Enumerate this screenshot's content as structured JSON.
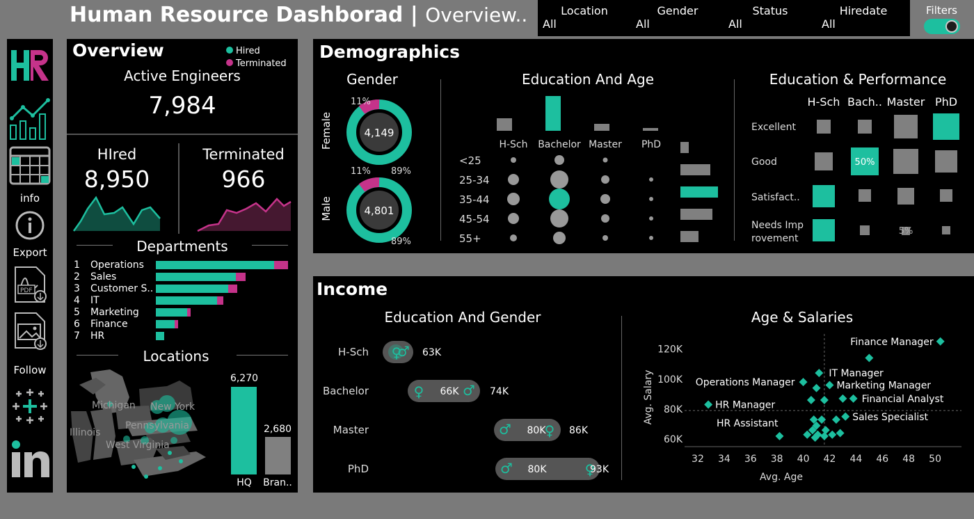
{
  "header": {
    "title": "Human Resource Dashborad",
    "separator": "|",
    "subtitle": "Overview..",
    "filters": [
      {
        "label": "Location",
        "value": "All"
      },
      {
        "label": "Gender",
        "value": "All"
      },
      {
        "label": "Status",
        "value": "All"
      },
      {
        "label": "Hiredate",
        "value": "All"
      }
    ],
    "filters_toggle_label": "Filters"
  },
  "sidebar": {
    "logo_text": "HR",
    "info_label": "info",
    "export_label": "Export",
    "follow_label": "Follow",
    "linkedin_text": "in"
  },
  "overview": {
    "title": "Overview",
    "legend": [
      {
        "name": "Hired",
        "color": "#1dbf9f"
      },
      {
        "name": "Terminated",
        "color": "#c5338a"
      }
    ],
    "active_label": "Active Engineers",
    "active_value": "7,984",
    "hired_label": "HIred",
    "hired_value": "8,950",
    "terminated_label": "Terminated",
    "terminated_value": "966",
    "departments_title": "Departments",
    "departments": [
      {
        "rank": "1",
        "name": "Operations",
        "hired": 170,
        "term": 20
      },
      {
        "rank": "2",
        "name": "Sales",
        "hired": 115,
        "term": 14
      },
      {
        "rank": "3",
        "name": "Customer S..",
        "hired": 104,
        "term": 13
      },
      {
        "rank": "4",
        "name": "IT",
        "hired": 88,
        "term": 9
      },
      {
        "rank": "5",
        "name": "Marketing",
        "hired": 45,
        "term": 5
      },
      {
        "rank": "6",
        "name": "Finance",
        "hired": 27,
        "term": 5
      },
      {
        "rank": "7",
        "name": "HR",
        "hired": 12,
        "term": 0
      }
    ],
    "locations_title": "Locations",
    "map_labels": [
      "Michigan",
      "New York",
      "Illinois",
      "Pennsylvania",
      "West Virginia"
    ],
    "hq_value": "6,270",
    "hq_label": "HQ",
    "branch_value": "2,680",
    "branch_label": "Bran.."
  },
  "demographics": {
    "title": "Demographics",
    "gender_title": "Gender",
    "female": {
      "label": "Female",
      "count": "4,149",
      "pct_a": "11%",
      "pct_b": "89%"
    },
    "male": {
      "label": "Male",
      "count": "4,801",
      "pct_a": "11%",
      "pct_b": "89%"
    },
    "edu_age_title": "Education And Age",
    "education_levels": [
      "H-Sch",
      "Bachelor",
      "Master",
      "PhD"
    ],
    "age_groups": [
      "<25",
      "25-34",
      "35-44",
      "45-54",
      "55+"
    ],
    "edu_perf_title": "Education & Performance",
    "edu_short": [
      "H-Sch",
      "Bach..",
      "Master",
      "PhD"
    ],
    "performance_levels": [
      "Excellent",
      "Good",
      "Satisfact..",
      "Needs Imp\nrovement"
    ],
    "perf_label_good_bach": "50%",
    "perf_label_needs_master": "5%"
  },
  "income": {
    "title": "Income",
    "edu_gender_title": "Education And Gender",
    "rows": [
      {
        "edu": "H-Sch",
        "mid": "",
        "right": "63K"
      },
      {
        "edu": "Bachelor",
        "mid": "66K",
        "right": "74K"
      },
      {
        "edu": "Master",
        "mid": "80K",
        "right": "86K"
      },
      {
        "edu": "PhD",
        "mid": "80K",
        "right": "93K"
      }
    ],
    "age_salary_title": "Age & Salaries",
    "chart_data": {
      "type": "scatter",
      "title": "Age & Salaries",
      "xlabel": "Avg. Age",
      "ylabel": "Avg. Salary",
      "xticks": [
        "32",
        "34",
        "36",
        "38",
        "40",
        "42",
        "44",
        "46",
        "48",
        "50"
      ],
      "yticks": [
        "60K",
        "80K",
        "100K",
        "120K"
      ],
      "xlim": [
        31,
        52
      ],
      "ylim": [
        55,
        130
      ],
      "points": [
        {
          "x": 50.4,
          "y": 125,
          "label": "Finance Manager"
        },
        {
          "x": 45.0,
          "y": 114,
          "label": ""
        },
        {
          "x": 41.2,
          "y": 104,
          "label": "IT Manager"
        },
        {
          "x": 40.0,
          "y": 98,
          "label": "Operations Manager"
        },
        {
          "x": 41.0,
          "y": 94,
          "label": ""
        },
        {
          "x": 42.0,
          "y": 96,
          "label": "Marketing Manager"
        },
        {
          "x": 43.0,
          "y": 87,
          "label": ""
        },
        {
          "x": 43.8,
          "y": 87,
          "label": "Financial Analyst"
        },
        {
          "x": 40.6,
          "y": 86,
          "label": ""
        },
        {
          "x": 41.6,
          "y": 86,
          "label": ""
        },
        {
          "x": 32.8,
          "y": 83,
          "label": "HR Manager"
        },
        {
          "x": 43.2,
          "y": 75,
          "label": "Sales Specialist"
        },
        {
          "x": 42.5,
          "y": 73,
          "label": ""
        },
        {
          "x": 40.8,
          "y": 73,
          "label": ""
        },
        {
          "x": 41.4,
          "y": 73,
          "label": ""
        },
        {
          "x": 41.0,
          "y": 69,
          "label": ""
        },
        {
          "x": 40.7,
          "y": 66,
          "label": ""
        },
        {
          "x": 41.7,
          "y": 66,
          "label": ""
        },
        {
          "x": 40.3,
          "y": 63,
          "label": ""
        },
        {
          "x": 41.1,
          "y": 63,
          "label": ""
        },
        {
          "x": 41.6,
          "y": 62,
          "label": ""
        },
        {
          "x": 42.2,
          "y": 63,
          "label": ""
        },
        {
          "x": 42.8,
          "y": 64,
          "label": ""
        },
        {
          "x": 40.9,
          "y": 61,
          "label": ""
        },
        {
          "x": 38.2,
          "y": 62,
          "label": "HR Assistant"
        }
      ],
      "ref_x": 41.6,
      "ref_y": 79
    }
  }
}
